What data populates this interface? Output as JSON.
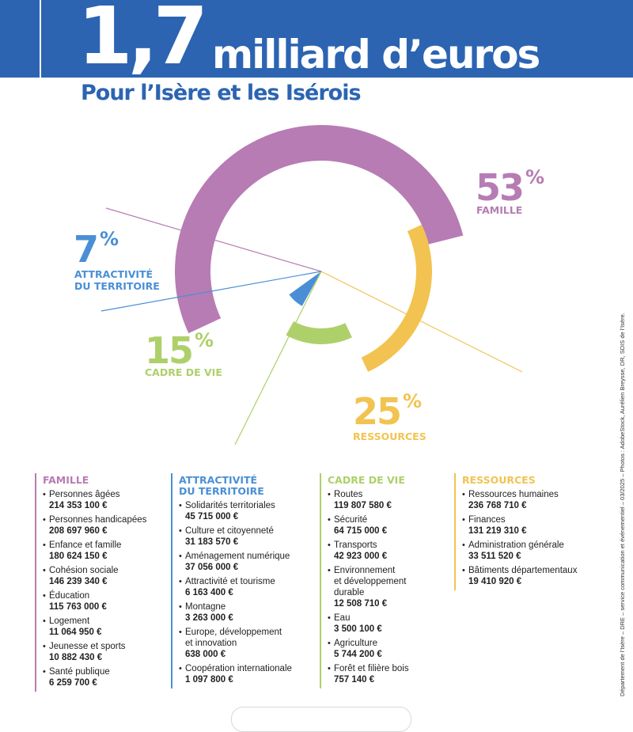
{
  "header": {
    "big": "1,7",
    "rest": "milliard d’euros",
    "subtitle": "Pour l’Isère et les Isérois"
  },
  "chart_data": {
    "type": "pie",
    "style": "donut",
    "categories": [
      "FAMILLE",
      "RESSOURCES",
      "CADRE DE VIE",
      "ATTRACTIVITÉ DU TERRITOIRE"
    ],
    "values": [
      53,
      25,
      15,
      7
    ],
    "value_labels": [
      "53",
      "25",
      "15",
      "7"
    ],
    "unit": "%",
    "colors": [
      "#b77cb4",
      "#f2c350",
      "#aed06a",
      "#4a8fd6"
    ]
  },
  "labels": {
    "famille": {
      "pct": "53",
      "sign": "%",
      "name": "FAMILLE",
      "color": "#b77cb4"
    },
    "ressources": {
      "pct": "25",
      "sign": "%",
      "name": "RESSOURCES",
      "color": "#f2c350"
    },
    "cadre": {
      "pct": "15",
      "sign": "%",
      "name": "CADRE DE VIE",
      "color": "#aed06a"
    },
    "attract": {
      "pct": "7",
      "sign": "%",
      "name": "ATTRACTIVITÉ\nDU TERRITOIRE",
      "color": "#4a8fd6"
    }
  },
  "columns": [
    {
      "title": "FAMILLE",
      "color": "#b77cb4",
      "items": [
        {
          "name": "Personnes âgées",
          "amount": "214 353 100 €"
        },
        {
          "name": "Personnes handicapées",
          "amount": "208 697 960 €"
        },
        {
          "name": "Enfance et famille",
          "amount": "180 624 150 €"
        },
        {
          "name": "Cohésion sociale",
          "amount": "146 239 340 €"
        },
        {
          "name": "Éducation",
          "amount": "115 763 000 €"
        },
        {
          "name": "Logement",
          "amount": "11 064 950 €"
        },
        {
          "name": "Jeunesse et sports",
          "amount": "10 882 430 €"
        },
        {
          "name": "Santé publique",
          "amount": "6 259 700 €"
        }
      ]
    },
    {
      "title": "ATTRACTIVITÉ\nDU TERRITOIRE",
      "color": "#4a8fd6",
      "items": [
        {
          "name": "Solidarités territoriales",
          "amount": "45 715 000 €"
        },
        {
          "name": "Culture et citoyenneté",
          "amount": "31 183 570 €"
        },
        {
          "name": "Aménagement numérique",
          "amount": "37 056 000 €"
        },
        {
          "name": "Attractivité et tourisme",
          "amount": "6 163 400 €"
        },
        {
          "name": "Montagne",
          "amount": "3 263 000 €"
        },
        {
          "name": "Europe, développement\net innovation",
          "amount": "638 000 €"
        },
        {
          "name": "Coopération internationale",
          "amount": "1 097 800 €"
        }
      ]
    },
    {
      "title": "CADRE DE VIE",
      "color": "#aed06a",
      "items": [
        {
          "name": "Routes",
          "amount": "119 807 580 €"
        },
        {
          "name": "Sécurité",
          "amount": "64 715 000 €"
        },
        {
          "name": "Transports",
          "amount": "42 923 000 €"
        },
        {
          "name": "Environnement\net développement\ndurable",
          "amount": "12 508 710 €"
        },
        {
          "name": "Eau",
          "amount": "3 500 100 €"
        },
        {
          "name": "Agriculture",
          "amount": "5 744 200 €"
        },
        {
          "name": "Forêt et filière bois",
          "amount": "757 140 €"
        }
      ]
    },
    {
      "title": "RESSOURCES",
      "color": "#f2c350",
      "items": [
        {
          "name": "Ressources humaines",
          "amount": "236 768 710 €"
        },
        {
          "name": "Finances",
          "amount": "131 219 310 €"
        },
        {
          "name": "Administration générale",
          "amount": "33 511 520 €"
        },
        {
          "name": "Bâtiments départementaux",
          "amount": "19 410 920 €"
        }
      ]
    }
  ],
  "credits": "Département de l’Isère – DRE – service communication et événementiel – 03/2025 – Photos : AdobeStock, Aurélien Breysse, DR, SDIS de l’Isère.",
  "colors": {
    "banner": "#2c64b2",
    "text": "#222222"
  }
}
